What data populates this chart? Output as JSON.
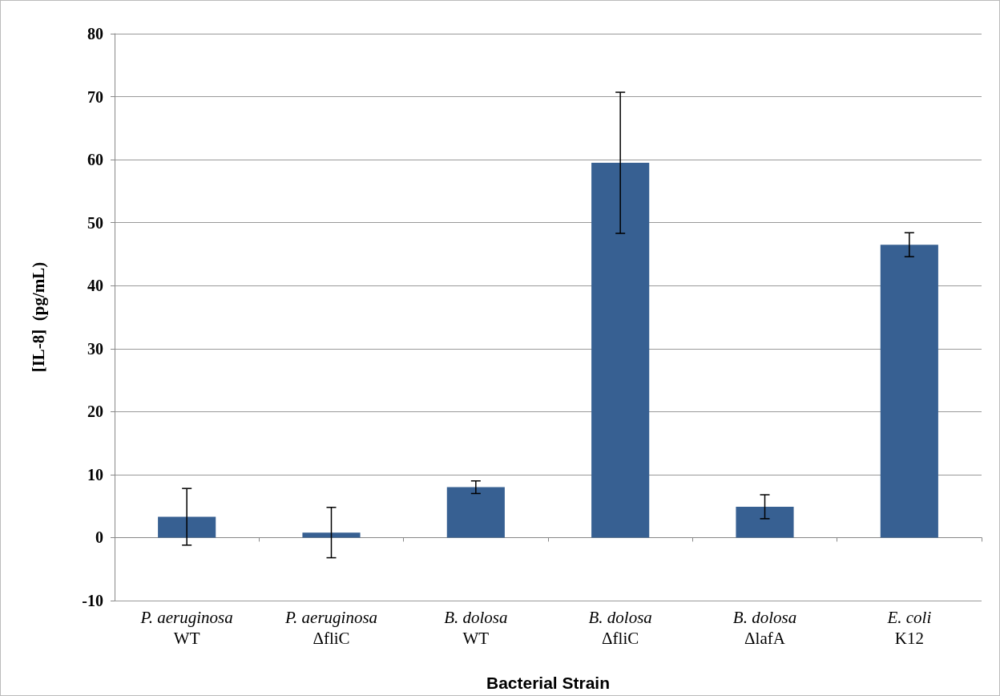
{
  "chart_data": {
    "type": "bar",
    "xlabel": "Bacterial Strain",
    "ylabel": "[IL-8]  (pg/mL)",
    "categories": [
      "P. aeruginosa\nWT",
      "P. aeruginosa\nΔfliC",
      "B. dolosa\nWT",
      "B. dolosa\nΔfliC",
      "B. dolosa\nΔlafA",
      "E. coli\nK12"
    ],
    "values": [
      3.3,
      0.8,
      8.0,
      59.5,
      4.9,
      46.5
    ],
    "errors": [
      4.5,
      4.0,
      1.0,
      11.2,
      1.9,
      1.9
    ],
    "color": "#376092",
    "ylim": [
      -10,
      80
    ],
    "yticks": [
      -10,
      0,
      10,
      20,
      30,
      40,
      50,
      60,
      70,
      80
    ],
    "grid": "y"
  }
}
